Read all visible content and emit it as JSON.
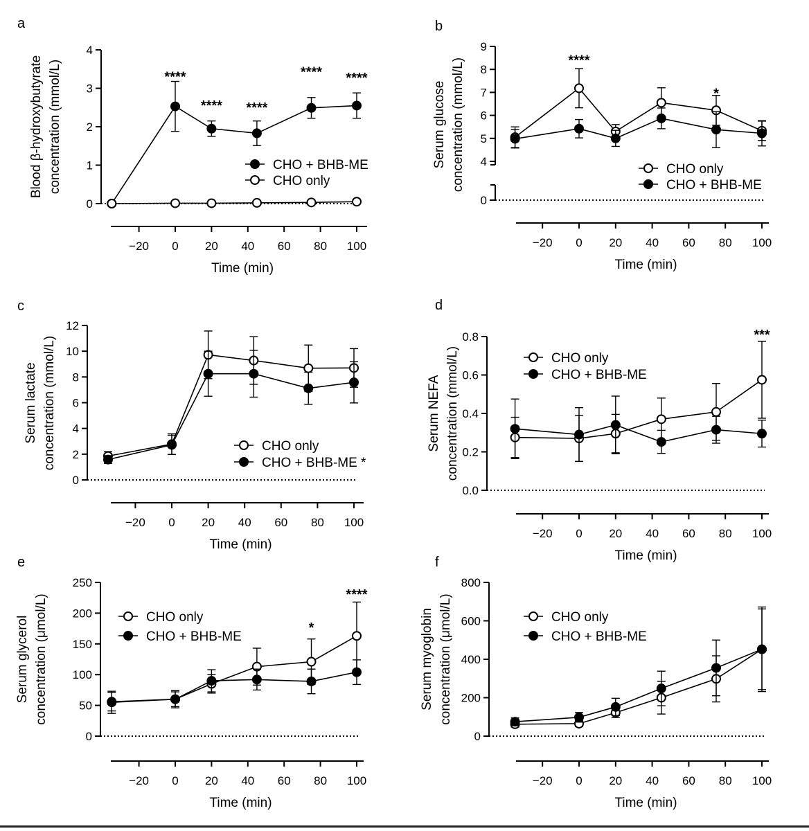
{
  "chart_data": [
    {
      "type": "line",
      "panel_label": "a",
      "ylabel_lines": [
        "Blood β-hydroxybutyrate",
        "concentration (mmol/L)"
      ],
      "xlabel": "Time (min)",
      "xticks": [
        -20,
        0,
        20,
        40,
        60,
        80,
        100
      ],
      "xtick_labels": [
        "−20",
        "0",
        "20",
        "40",
        "60",
        "80",
        "100"
      ],
      "yticks": [
        0,
        1,
        2,
        3,
        4
      ],
      "ytick_labels": [
        "0",
        "1",
        "2",
        "3",
        "4"
      ],
      "ylim": [
        0,
        4
      ],
      "x": [
        -35,
        0,
        20,
        45,
        75,
        100
      ],
      "series": [
        {
          "name": "CHO + BHB-ME",
          "marker": "filled",
          "values": [
            0.0,
            2.53,
            1.95,
            1.83,
            2.49,
            2.55
          ],
          "errors": [
            0.05,
            0.65,
            0.2,
            0.32,
            0.27,
            0.33
          ]
        },
        {
          "name": "CHO only",
          "marker": "open",
          "values": [
            0.0,
            0.01,
            0.01,
            0.02,
            0.03,
            0.05
          ],
          "errors": [
            0.02,
            0.02,
            0.02,
            0.02,
            0.02,
            0.03
          ]
        }
      ],
      "legend": [
        "CHO + BHB-ME",
        "CHO only"
      ],
      "annotations": [
        {
          "x": 0,
          "y": 3.32,
          "text": "****"
        },
        {
          "x": 20,
          "y": 2.58,
          "text": "****"
        },
        {
          "x": 45,
          "y": 2.52,
          "text": "****"
        },
        {
          "x": 75,
          "y": 3.45,
          "text": "****"
        },
        {
          "x": 100,
          "y": 3.3,
          "text": "****"
        }
      ]
    },
    {
      "type": "line",
      "panel_label": "b",
      "ylabel_lines": [
        "Serum glucose",
        "concentration (mmol/L)"
      ],
      "xlabel": "Time (min)",
      "xticks": [
        -20,
        0,
        20,
        40,
        60,
        80,
        100
      ],
      "xtick_labels": [
        "−20",
        "0",
        "20",
        "40",
        "60",
        "80",
        "100"
      ],
      "yticks": [
        0,
        4,
        5,
        6,
        7,
        8,
        9
      ],
      "ytick_labels": [
        "0",
        "4",
        "5",
        "6",
        "7",
        "8",
        "9"
      ],
      "ylim": [
        0,
        9
      ],
      "axis_break": [
        0,
        4
      ],
      "x": [
        -35,
        0,
        20,
        45,
        75,
        100
      ],
      "series": [
        {
          "name": "CHO only",
          "marker": "open",
          "values": [
            5.05,
            7.18,
            5.3,
            6.55,
            6.22,
            5.33
          ],
          "errors": [
            0.45,
            0.85,
            0.3,
            0.65,
            0.65,
            0.42
          ]
        },
        {
          "name": "CHO + BHB-ME",
          "marker": "filled",
          "values": [
            4.98,
            5.42,
            5.0,
            5.87,
            5.38,
            5.22
          ],
          "errors": [
            0.4,
            0.4,
            0.35,
            0.45,
            0.78,
            0.55
          ]
        }
      ],
      "legend": [
        "CHO only",
        "CHO + BHB-ME"
      ],
      "annotations": [
        {
          "x": 0,
          "y": 8.45,
          "text": "****"
        },
        {
          "x": 75,
          "y": 7.0,
          "text": "*"
        }
      ]
    },
    {
      "type": "line",
      "panel_label": "c",
      "ylabel_lines": [
        "Serum lactate",
        "concentration (mmol/L)"
      ],
      "xlabel": "Time (min)",
      "xticks": [
        -20,
        0,
        20,
        40,
        60,
        80,
        100
      ],
      "xtick_labels": [
        "−20",
        "0",
        "20",
        "40",
        "60",
        "80",
        "100"
      ],
      "yticks": [
        0,
        2,
        4,
        6,
        8,
        10,
        12
      ],
      "ytick_labels": [
        "0",
        "2",
        "4",
        "6",
        "8",
        "10",
        "12"
      ],
      "ylim": [
        0,
        12
      ],
      "x": [
        -35,
        0,
        20,
        45,
        75,
        100
      ],
      "series": [
        {
          "name": "CHO only",
          "marker": "open",
          "values": [
            1.85,
            2.78,
            9.72,
            9.28,
            8.68,
            8.7
          ],
          "errors": [
            0.35,
            0.8,
            1.85,
            1.85,
            1.8,
            1.5
          ]
        },
        {
          "name": "CHO + BHB-ME",
          "marker": "filled",
          "values": [
            1.58,
            2.72,
            8.25,
            8.25,
            7.12,
            7.58
          ],
          "errors": [
            0.3,
            0.75,
            1.75,
            1.82,
            1.25,
            1.6
          ]
        }
      ],
      "legend": [
        "CHO only",
        "CHO + BHB-ME *"
      ],
      "annotations": []
    },
    {
      "type": "line",
      "panel_label": "d",
      "ylabel_lines": [
        "Serum NEFA",
        "concentration (mmol/L)"
      ],
      "xlabel": "Time (min)",
      "xticks": [
        -20,
        0,
        20,
        40,
        60,
        80,
        100
      ],
      "xtick_labels": [
        "−20",
        "0",
        "20",
        "40",
        "60",
        "80",
        "100"
      ],
      "yticks": [
        0.0,
        0.2,
        0.4,
        0.6,
        0.8
      ],
      "ytick_labels": [
        "0.0",
        "0.2",
        "0.4",
        "0.6",
        "0.8"
      ],
      "ylim": [
        0,
        0.8
      ],
      "x": [
        -35,
        0,
        20,
        45,
        75,
        100
      ],
      "series": [
        {
          "name": "CHO only",
          "marker": "open",
          "values": [
            0.275,
            0.27,
            0.295,
            0.37,
            0.408,
            0.575
          ],
          "errors": [
            0.105,
            0.12,
            0.1,
            0.11,
            0.148,
            0.2
          ]
        },
        {
          "name": "CHO + BHB-ME",
          "marker": "filled",
          "values": [
            0.32,
            0.29,
            0.34,
            0.252,
            0.315,
            0.295
          ],
          "errors": [
            0.155,
            0.14,
            0.15,
            0.06,
            0.07,
            0.07
          ]
        }
      ],
      "legend": [
        "CHO only",
        "CHO + BHB-ME"
      ],
      "annotations": [
        {
          "x": 100,
          "y": 0.815,
          "text": "***"
        }
      ]
    },
    {
      "type": "line",
      "panel_label": "e",
      "ylabel_lines": [
        "Serum glycerol",
        "concentration (μmol/L)"
      ],
      "xlabel": "Time (min)",
      "xticks": [
        -20,
        0,
        20,
        40,
        60,
        80,
        100
      ],
      "xtick_labels": [
        "−20",
        "0",
        "20",
        "40",
        "60",
        "80",
        "100"
      ],
      "yticks": [
        0,
        50,
        100,
        150,
        200,
        250
      ],
      "ytick_labels": [
        "0",
        "50",
        "100",
        "150",
        "200",
        "250"
      ],
      "ylim": [
        0,
        250
      ],
      "x": [
        -35,
        0,
        20,
        45,
        75,
        100
      ],
      "series": [
        {
          "name": "CHO only",
          "marker": "open",
          "values": [
            55,
            60,
            85,
            113,
            121,
            163
          ],
          "errors": [
            18,
            14,
            15,
            30,
            37,
            55
          ]
        },
        {
          "name": "CHO + BHB-ME",
          "marker": "filled",
          "values": [
            56,
            60,
            90,
            92,
            89,
            104
          ],
          "errors": [
            15,
            12,
            18,
            17,
            20,
            20
          ]
        }
      ],
      "legend": [
        "CHO only",
        "CHO + BHB-ME"
      ],
      "annotations": [
        {
          "x": 75,
          "y": 178,
          "text": "*"
        },
        {
          "x": 100,
          "y": 232,
          "text": "****"
        }
      ]
    },
    {
      "type": "line",
      "panel_label": "f",
      "ylabel_lines": [
        "Serum myoglobin",
        "concentration (μmol/L)"
      ],
      "xlabel": "Time (min)",
      "xticks": [
        -20,
        0,
        20,
        40,
        60,
        80,
        100
      ],
      "xtick_labels": [
        "−20",
        "0",
        "20",
        "40",
        "60",
        "80",
        "100"
      ],
      "yticks": [
        0,
        200,
        400,
        600,
        800
      ],
      "ytick_labels": [
        "0",
        "200",
        "400",
        "600",
        "800"
      ],
      "ylim": [
        0,
        800
      ],
      "x": [
        -35,
        0,
        20,
        45,
        75,
        100
      ],
      "series": [
        {
          "name": "CHO only",
          "marker": "open",
          "values": [
            62,
            65,
            122,
            200,
            298,
            452
          ],
          "errors": [
            15,
            15,
            25,
            85,
            120,
            210
          ]
        },
        {
          "name": "CHO + BHB-ME",
          "marker": "filled",
          "values": [
            75,
            98,
            152,
            248,
            355,
            452
          ],
          "errors": [
            20,
            25,
            45,
            90,
            145,
            220
          ]
        }
      ],
      "legend": [
        "CHO only",
        "CHO + BHB-ME"
      ],
      "annotations": []
    }
  ]
}
